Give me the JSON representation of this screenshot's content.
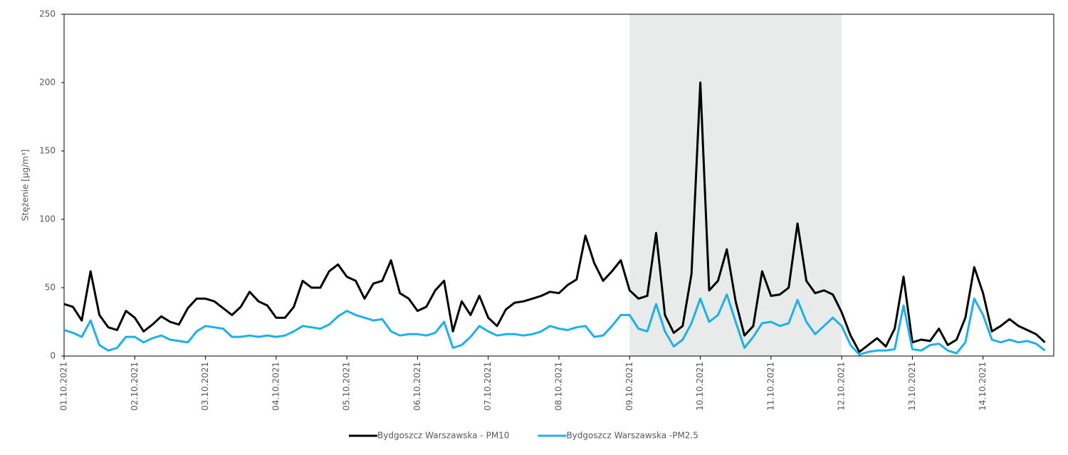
{
  "chart_data": {
    "type": "line",
    "y_label": "Stężenie [µg/m³]",
    "categories": [
      "01.10.2021",
      null,
      null,
      null,
      null,
      null,
      null,
      null,
      "02.10.2021",
      null,
      null,
      null,
      null,
      null,
      null,
      null,
      "03.10.2021",
      null,
      null,
      null,
      null,
      null,
      null,
      null,
      "04.10.2021",
      null,
      null,
      null,
      null,
      null,
      null,
      null,
      "05.10.2021",
      null,
      null,
      null,
      null,
      null,
      null,
      null,
      "06.10.2021",
      null,
      null,
      null,
      null,
      null,
      null,
      null,
      "07.10.2021",
      null,
      null,
      null,
      null,
      null,
      null,
      null,
      "08.10.2021",
      null,
      null,
      null,
      null,
      null,
      null,
      null,
      "09.10.2021",
      null,
      null,
      null,
      null,
      null,
      null,
      null,
      "10.10.2021",
      null,
      null,
      null,
      null,
      null,
      null,
      null,
      "11.10.2021",
      null,
      null,
      null,
      null,
      null,
      null,
      null,
      "12.10.2021",
      null,
      null,
      null,
      null,
      null,
      null,
      null,
      "13.10.2021",
      null,
      null,
      null,
      null,
      null,
      null,
      null,
      "14.10.2021",
      null,
      null,
      null,
      null,
      null,
      null,
      null
    ],
    "series": [
      {
        "name": "Bydgoszcz Warszawska - PM10",
        "color": "#000000",
        "values": [
          38,
          36,
          26,
          62,
          30,
          21,
          19,
          33,
          28,
          18,
          23,
          29,
          25,
          23,
          35,
          42,
          42,
          40,
          35,
          30,
          36,
          47,
          40,
          37,
          28,
          28,
          36,
          55,
          50,
          50,
          62,
          67,
          58,
          55,
          42,
          53,
          55,
          70,
          46,
          42,
          33,
          36,
          48,
          55,
          18,
          40,
          30,
          44,
          28,
          22,
          34,
          39,
          40,
          42,
          44,
          47,
          46,
          52,
          56,
          88,
          68,
          55,
          62,
          70,
          48,
          42,
          44,
          90,
          30,
          17,
          22,
          60,
          200,
          48,
          55,
          78,
          40,
          15,
          22,
          62,
          44,
          45,
          50,
          97,
          55,
          46,
          48,
          45,
          32,
          15,
          3,
          8,
          13,
          7,
          20,
          58,
          10,
          12,
          11,
          20,
          8,
          12,
          28,
          65,
          46,
          18,
          22,
          27,
          22,
          19,
          16,
          10
        ]
      },
      {
        "name": "Bydgoszcz Warszawska -PM2.5",
        "color": "#1eb1e8",
        "values": [
          19,
          17,
          14,
          26,
          8,
          4,
          6,
          14,
          14,
          10,
          13,
          15,
          12,
          11,
          10,
          18,
          22,
          21,
          20,
          14,
          14,
          15,
          14,
          15,
          14,
          15,
          18,
          22,
          21,
          20,
          23,
          29,
          33,
          30,
          28,
          26,
          27,
          18,
          15,
          16,
          16,
          15,
          17,
          25,
          6,
          8,
          14,
          22,
          18,
          15,
          16,
          16,
          15,
          16,
          18,
          22,
          20,
          19,
          21,
          22,
          14,
          15,
          22,
          30,
          30,
          20,
          18,
          38,
          18,
          7,
          12,
          24,
          42,
          25,
          30,
          45,
          25,
          6,
          14,
          24,
          25,
          22,
          24,
          41,
          25,
          16,
          22,
          28,
          22,
          8,
          1,
          3,
          4,
          4,
          5,
          37,
          5,
          4,
          8,
          9,
          4,
          2,
          10,
          42,
          30,
          12,
          10,
          12,
          10,
          11,
          9,
          4
        ]
      }
    ],
    "highlight": [
      "09.10.2021",
      "12.10.2021"
    ],
    "highlight_color": "#e9ebea",
    "ylim": [
      0,
      250
    ],
    "yticks": [
      0,
      50,
      100,
      150,
      200,
      250
    ],
    "legend": "bottom"
  }
}
